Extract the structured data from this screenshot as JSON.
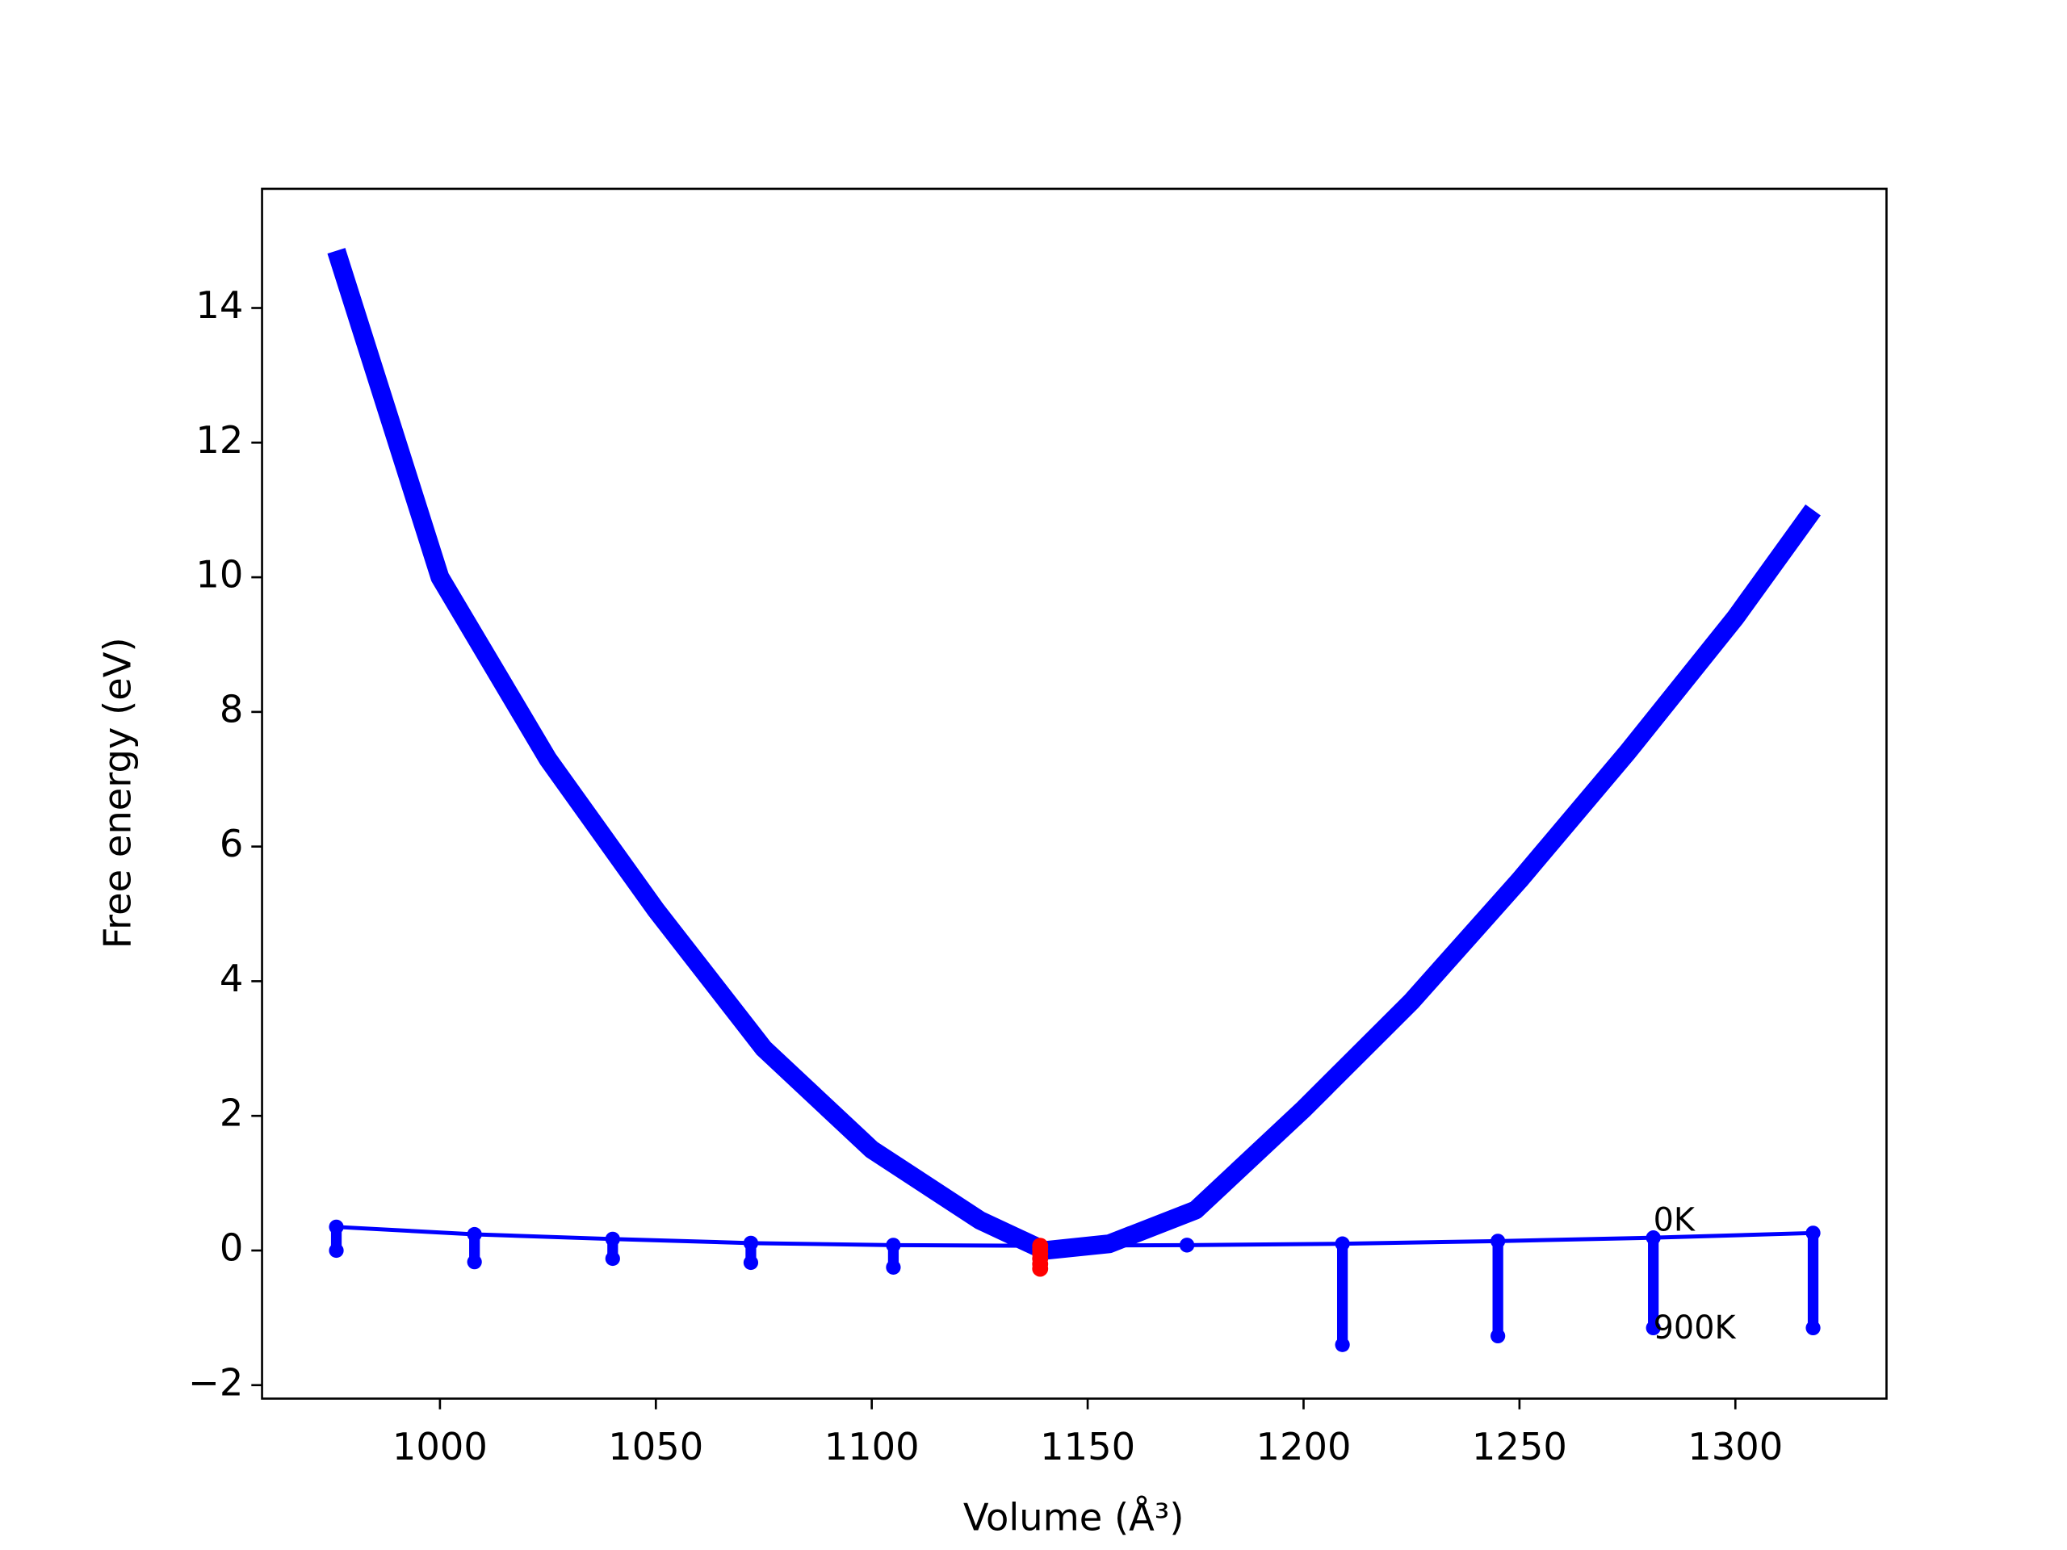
{
  "chart_data": {
    "type": "line",
    "x_label": "Volume (Å³)",
    "y_label": "Free energy (eV)",
    "xlim": [
      958.8,
      1335
    ],
    "ylim": [
      -2.2,
      15.77
    ],
    "xticks": [
      1000,
      1050,
      1100,
      1150,
      1200,
      1250,
      1300
    ],
    "yticks": [
      {
        "value": -2,
        "label": "−2"
      },
      0,
      2,
      4,
      6,
      8,
      10,
      12,
      14
    ],
    "fit": {
      "color": "#0000ff",
      "x": [
        976,
        1000,
        1025,
        1050,
        1075,
        1100,
        1125,
        1140,
        1155,
        1175,
        1200,
        1225,
        1250,
        1275,
        1300,
        1318
      ],
      "values": [
        14.85,
        10.0,
        7.3,
        5.06,
        3.0,
        1.5,
        0.45,
        0.0,
        0.1,
        0.6,
        2.1,
        3.7,
        5.5,
        7.4,
        9.4,
        11.0
      ]
    },
    "x": [
      976,
      1008,
      1040,
      1072,
      1105,
      1139,
      1173,
      1209,
      1245,
      1281,
      1318
    ],
    "series": [
      {
        "color": "#0000ff",
        "values": [
          0.35,
          0.24,
          0.17,
          0.11,
          0.08,
          0.07,
          0.08,
          0.1,
          0.14,
          0.19,
          0.26
        ]
      },
      {
        "color": "#0000ff",
        "values": [
          0.0,
          -0.17,
          -0.12,
          -0.18,
          -0.25,
          null,
          0.08,
          -1.4,
          -1.27,
          -1.15,
          -1.15
        ]
      }
    ],
    "minima": {
      "color": "#ff0000",
      "x": [
        1139,
        1139,
        1139,
        1139,
        1139,
        1139
      ],
      "values": [
        0.07,
        0.02,
        -0.05,
        -0.12,
        -0.2,
        -0.27
      ]
    },
    "annotations": [
      {
        "text": "0K",
        "x": 1281,
        "y": 0.5
      },
      {
        "text": "900K",
        "x": 1281,
        "y": -1.1
      }
    ]
  }
}
